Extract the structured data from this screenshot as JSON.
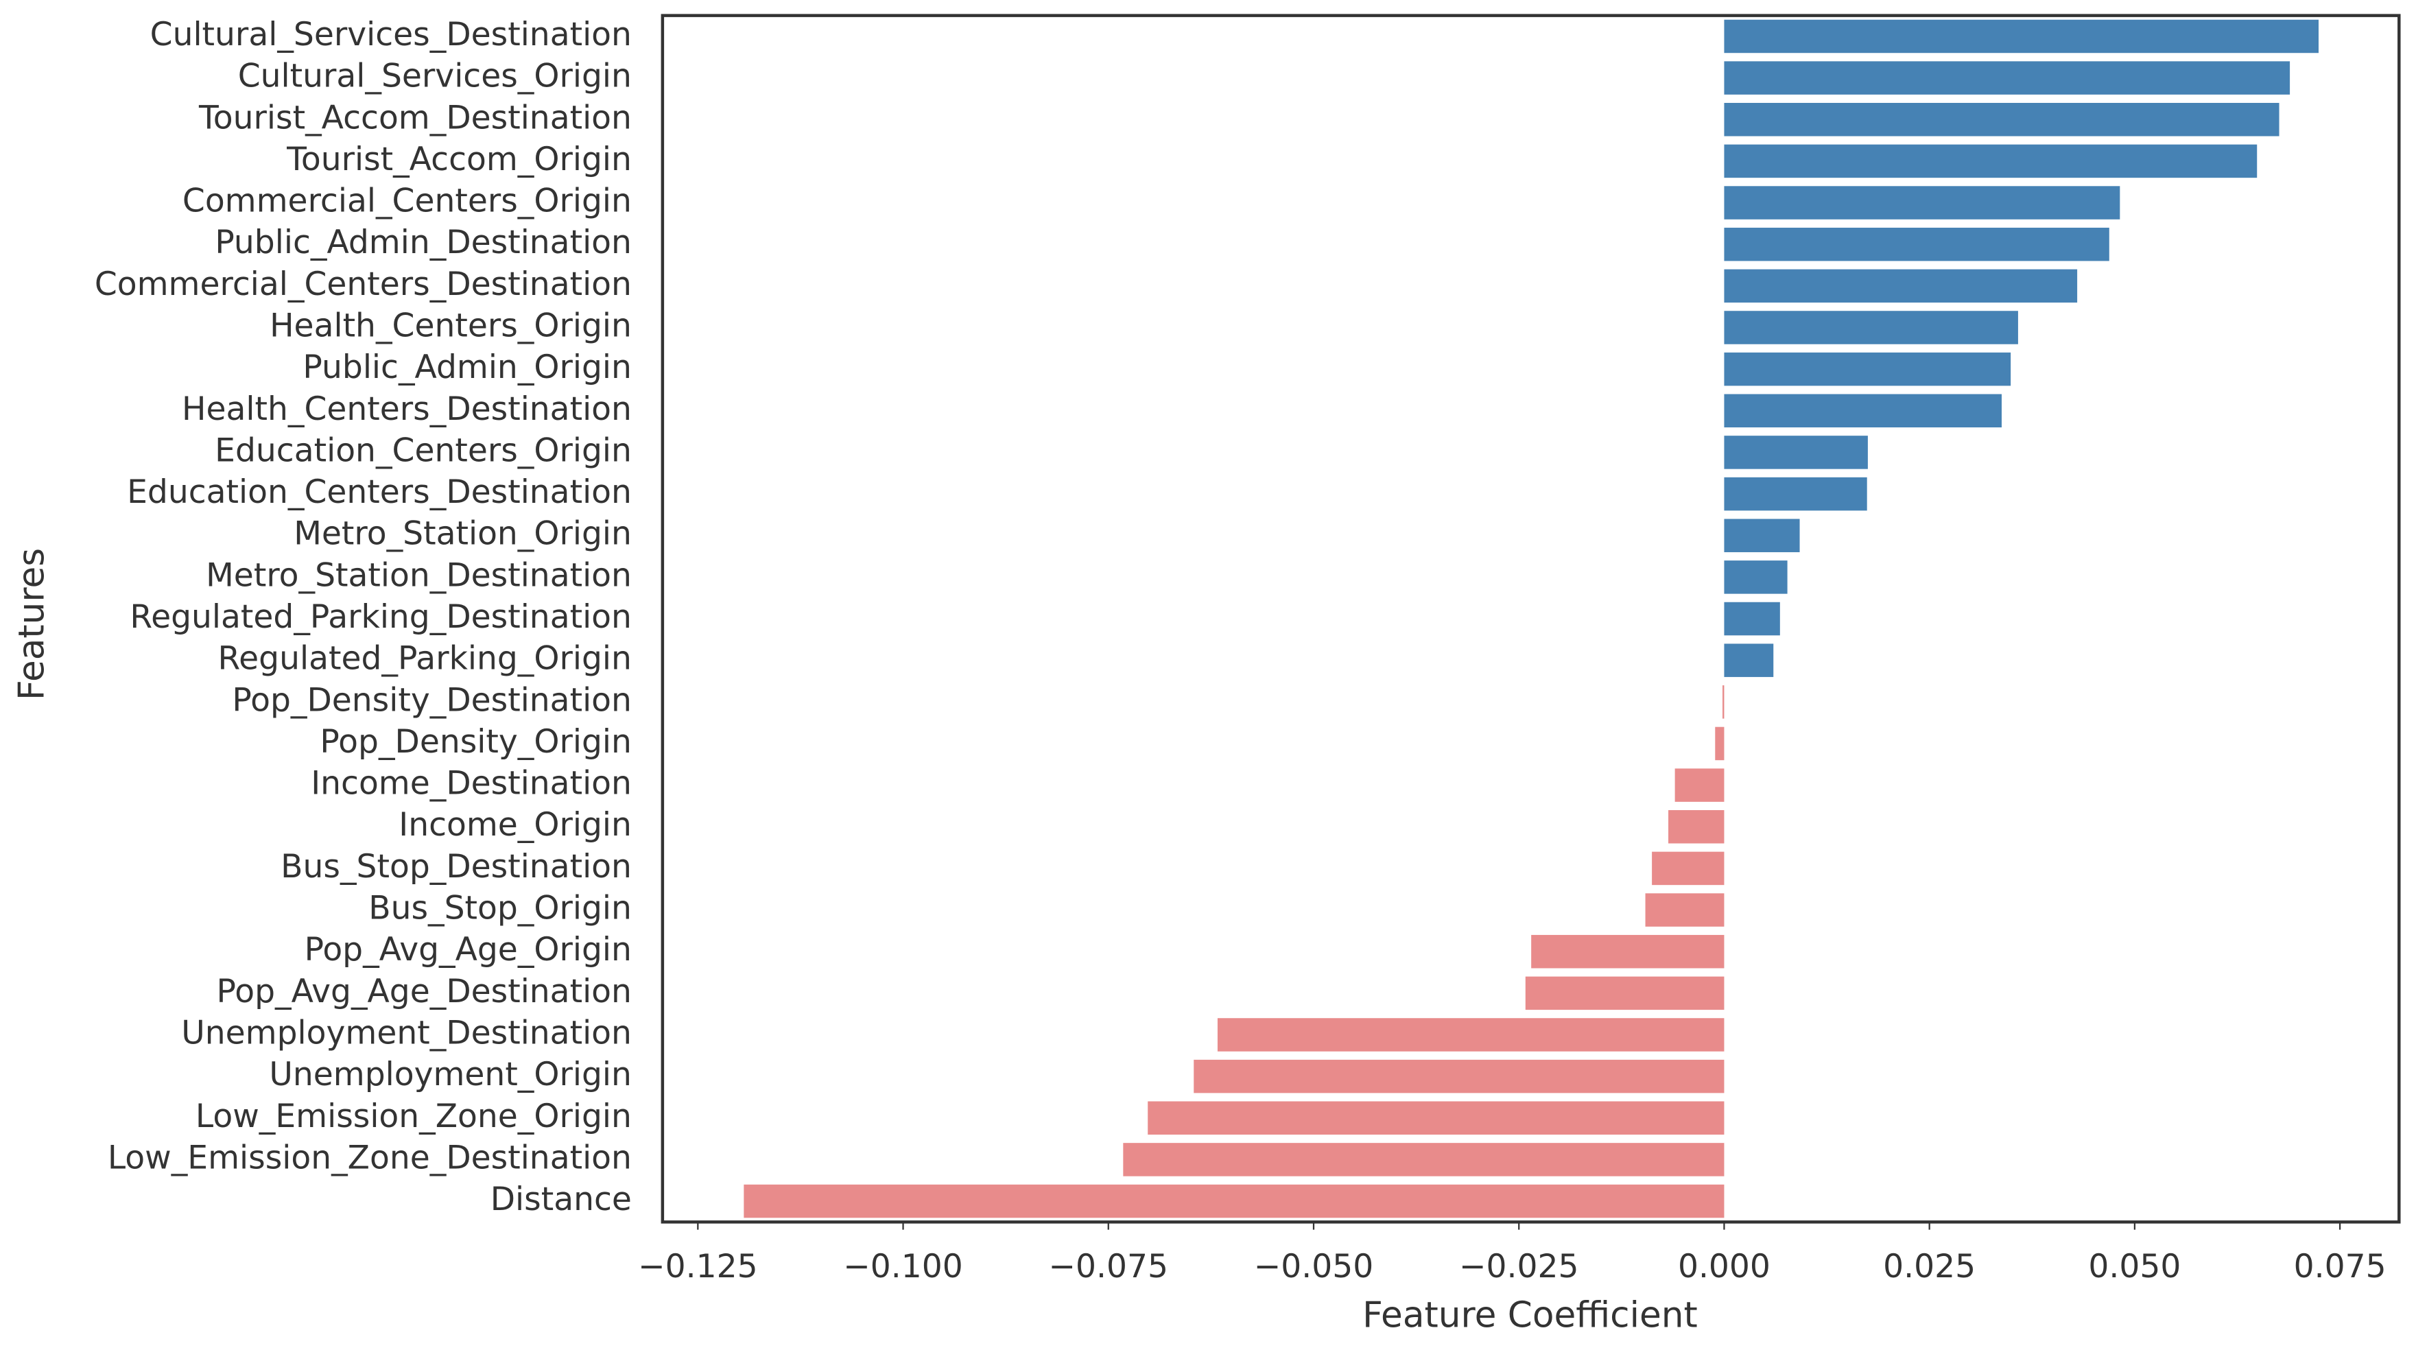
{
  "chart_data": {
    "type": "barh",
    "xlabel": "Feature Coefficient",
    "ylabel": "Features",
    "categories": [
      "Cultural_Services_Destination",
      "Cultural_Services_Origin",
      "Tourist_Accom_Destination",
      "Tourist_Accom_Origin",
      "Commercial_Centers_Origin",
      "Public_Admin_Destination",
      "Commercial_Centers_Destination",
      "Health_Centers_Origin",
      "Public_Admin_Origin",
      "Health_Centers_Destination",
      "Education_Centers_Origin",
      "Education_Centers_Destination",
      "Metro_Station_Origin",
      "Metro_Station_Destination",
      "Regulated_Parking_Destination",
      "Regulated_Parking_Origin",
      "Pop_Density_Destination",
      "Pop_Density_Origin",
      "Income_Destination",
      "Income_Origin",
      "Bus_Stop_Destination",
      "Bus_Stop_Origin",
      "Pop_Avg_Age_Origin",
      "Pop_Avg_Age_Destination",
      "Unemployment_Destination",
      "Unemployment_Origin",
      "Low_Emission_Zone_Origin",
      "Low_Emission_Zone_Destination",
      "Distance"
    ],
    "values": [
      0.0724,
      0.0689,
      0.0676,
      0.0649,
      0.0482,
      0.0469,
      0.043,
      0.0358,
      0.0349,
      0.0338,
      0.0175,
      0.0174,
      0.0092,
      0.0077,
      0.0068,
      0.006,
      -0.0002,
      -0.0011,
      -0.006,
      -0.0068,
      -0.0088,
      -0.0096,
      -0.0235,
      -0.0242,
      -0.0617,
      -0.0646,
      -0.0702,
      -0.0732,
      -0.1194
    ],
    "positive_color": "#4682b4",
    "negative_color": "#e88b8b",
    "xlim": [
      -0.1293,
      0.0822
    ],
    "xticks": [
      {
        "value": -0.125,
        "label": "−0.125"
      },
      {
        "value": -0.1,
        "label": "−0.100"
      },
      {
        "value": -0.075,
        "label": "−0.075"
      },
      {
        "value": -0.05,
        "label": "−0.050"
      },
      {
        "value": -0.025,
        "label": "−0.025"
      },
      {
        "value": 0,
        "label": "0.000"
      },
      0.025,
      {
        "value": 0.05,
        "label": "0.050"
      },
      0.075
    ],
    "grid": false
  }
}
